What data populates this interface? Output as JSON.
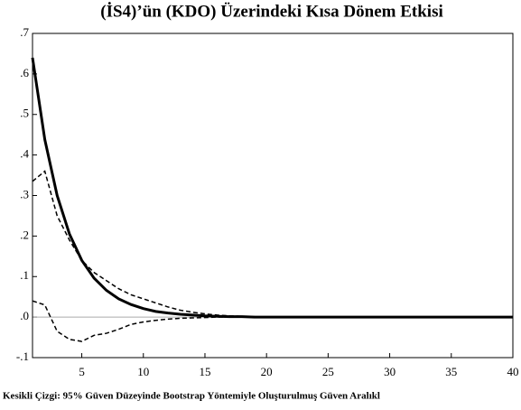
{
  "chart_data": {
    "type": "line",
    "title": "(İS4)’ün (KDO) Üzerindeki Kısa Dönem Etkisi",
    "footnote": "Kesikli Çizgi: 95% Güven Düzeyinde Bootstrap Yöntemiyle Oluşturulmuş Güven Aralıkl",
    "x": [
      1,
      2,
      3,
      4,
      5,
      6,
      7,
      8,
      9,
      10,
      11,
      12,
      13,
      14,
      15,
      16,
      17,
      18,
      19,
      20,
      21,
      22,
      23,
      24,
      25,
      26,
      27,
      28,
      29,
      30,
      31,
      32,
      33,
      34,
      35,
      36,
      37,
      38,
      39,
      40
    ],
    "series": [
      {
        "color": "#000000",
        "dash": false,
        "width": 3,
        "values": [
          0.64,
          0.438,
          0.3,
          0.205,
          0.14,
          0.096,
          0.066,
          0.045,
          0.031,
          0.021,
          0.014,
          0.01,
          0.007,
          0.005,
          0.003,
          0.002,
          0.001,
          0.001,
          0,
          0,
          0,
          0,
          0,
          0,
          0,
          0,
          0,
          0,
          0,
          0,
          0,
          0,
          0,
          0,
          0,
          0,
          0,
          0,
          0,
          0
        ]
      },
      {
        "color": "#000000",
        "dash": true,
        "width": 1.5,
        "values": [
          0.335,
          0.36,
          0.25,
          0.19,
          0.14,
          0.11,
          0.09,
          0.07,
          0.055,
          0.045,
          0.035,
          0.025,
          0.017,
          0.012,
          0.008,
          0.005,
          0.003,
          0.002,
          0.001,
          0,
          0,
          0,
          0,
          0,
          0,
          0,
          0,
          0,
          0,
          0,
          0,
          0,
          0,
          0,
          0,
          0,
          0,
          0,
          0,
          0
        ]
      },
      {
        "color": "#000000",
        "dash": true,
        "width": 1.5,
        "values": [
          0.04,
          0.03,
          -0.035,
          -0.055,
          -0.06,
          -0.045,
          -0.04,
          -0.03,
          -0.018,
          -0.012,
          -0.008,
          -0.005,
          -0.003,
          -0.002,
          -0.001,
          0,
          0,
          0,
          0,
          0,
          0,
          0,
          0,
          0,
          0,
          0,
          0,
          0,
          0,
          0,
          0,
          0,
          0,
          0,
          0,
          0,
          0,
          0,
          0,
          0
        ]
      }
    ],
    "xlim": [
      1,
      40
    ],
    "xticks": [
      5,
      10,
      15,
      20,
      25,
      30,
      35,
      40
    ],
    "ylim": [
      -0.1,
      0.7
    ],
    "yticks": [
      {
        "value": 0.7,
        "label": ".7"
      },
      {
        "value": 0.6,
        "label": ".6"
      },
      {
        "value": 0.5,
        "label": ".5"
      },
      {
        "value": 0.4,
        "label": ".4"
      },
      {
        "value": 0.3,
        "label": ".3"
      },
      {
        "value": 0.2,
        "label": ".2"
      },
      {
        "value": 0.1,
        "label": ".1"
      },
      {
        "value": 0,
        "label": ".0"
      },
      {
        "value": -0.1,
        "label": "-.1"
      }
    ],
    "zero_line": true
  }
}
